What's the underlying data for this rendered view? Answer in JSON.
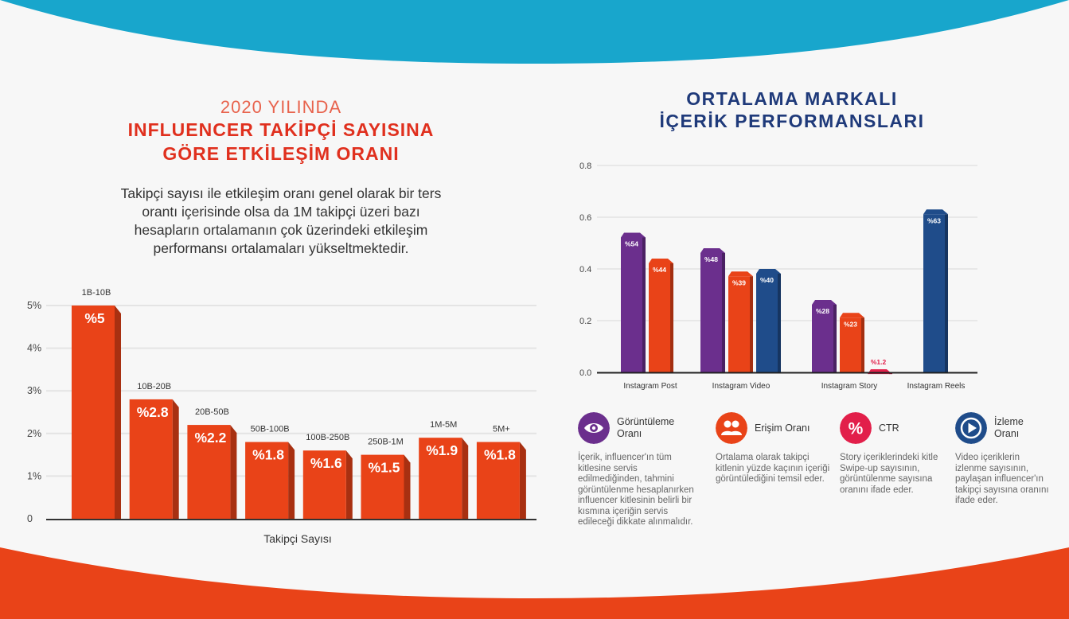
{
  "left": {
    "title_line1": "2020 YILINDA",
    "title_line2": "INFLUENCER TAKİPÇİ SAYISINA",
    "title_line3": "GÖRE ETKİLEŞİM ORANI",
    "intro": "Takipçi sayısı ile etkileşim oranı genel olarak bir ters orantı içerisinde olsa da 1M takipçi üzeri bazı hesapların ortalamanın çok üzerindeki etkileşim performansı ortalamaları yükseltmektedir."
  },
  "right": {
    "title_line1": "ORTALAMA MARKALI",
    "title_line2": "İÇERİK PERFORMANSLARI"
  },
  "colors": {
    "orange": "#e94318",
    "purple": "#6b2f8d",
    "navy": "#1f4c8a",
    "pink": "#e21f4a",
    "teal": "#18a6cc"
  },
  "chart_data": [
    {
      "type": "bar",
      "title": "2020 YILINDA INFLUENCER TAKİPÇİ SAYISINA GÖRE ETKİLEŞİM ORANI",
      "xlabel": "Takipçi Sayısı",
      "ylabel": "",
      "categories": [
        "1B-10B",
        "10B-20B",
        "20B-50B",
        "50B-100B",
        "100B-250B",
        "250B-1M",
        "1M-5M",
        "5M+"
      ],
      "values": [
        5,
        2.8,
        2.2,
        1.8,
        1.6,
        1.5,
        1.9,
        1.8
      ],
      "data_labels": [
        "%5",
        "%2.8",
        "%2.2",
        "%1.8",
        "%1.6",
        "%1.5",
        "%1.9",
        "%1.8"
      ],
      "yticks": [
        "0",
        "1%",
        "2%",
        "3%",
        "4%",
        "5%"
      ],
      "ylim": [
        0,
        5
      ],
      "grid": true
    },
    {
      "type": "bar",
      "title": "ORTALAMA MARKALI İÇERİK PERFORMANSLARI",
      "categories": [
        "Instagram Post",
        "Instagram Video",
        "Instagram Story",
        "Instagram Reels"
      ],
      "series": [
        {
          "name": "Görüntüleme Oranı",
          "values": [
            0.54,
            0.48,
            0.28,
            null
          ],
          "labels": [
            "%54",
            "%48",
            "%28",
            ""
          ]
        },
        {
          "name": "Erişim Oranı",
          "values": [
            0.44,
            0.39,
            0.23,
            null
          ],
          "labels": [
            "%44",
            "%39",
            "%23",
            ""
          ]
        },
        {
          "name": "CTR",
          "values": [
            null,
            null,
            0.012,
            null
          ],
          "labels": [
            "",
            "",
            "%1.2",
            ""
          ]
        },
        {
          "name": "İzleme Oranı",
          "values": [
            null,
            0.4,
            null,
            0.63
          ],
          "labels": [
            "",
            "%40",
            "",
            "%63"
          ]
        }
      ],
      "yticks": [
        "0.0",
        "0.2",
        "0.4",
        "0.6",
        "0.8"
      ],
      "ylim": [
        0,
        0.8
      ],
      "grid": true
    }
  ],
  "legend": [
    {
      "icon": "eye-icon",
      "title": "Görüntüleme Oranı",
      "desc": "İçerik, influencer'ın tüm kitlesine servis edilmediğinden, tahmini görüntülenme hesaplanırken influencer kitlesinin belirli bir kısmına içeriğin servis edileceği dikkate alınmalıdır."
    },
    {
      "icon": "people-icon",
      "title": "Erişim Oranı",
      "desc": "Ortalama olarak takipçi kitlenin yüzde kaçının içeriği görüntülediğini temsil eder."
    },
    {
      "icon": "percent-icon",
      "title": "CTR",
      "desc": "Story içeriklerindeki kitle Swipe-up sayısının, görüntülenme sayısına oranını ifade eder."
    },
    {
      "icon": "play-icon",
      "title": "İzleme Oranı",
      "desc": "Video içeriklerin izlenme sayısının, paylaşan influencer'ın takipçi sayısına oranını ifade eder."
    }
  ]
}
